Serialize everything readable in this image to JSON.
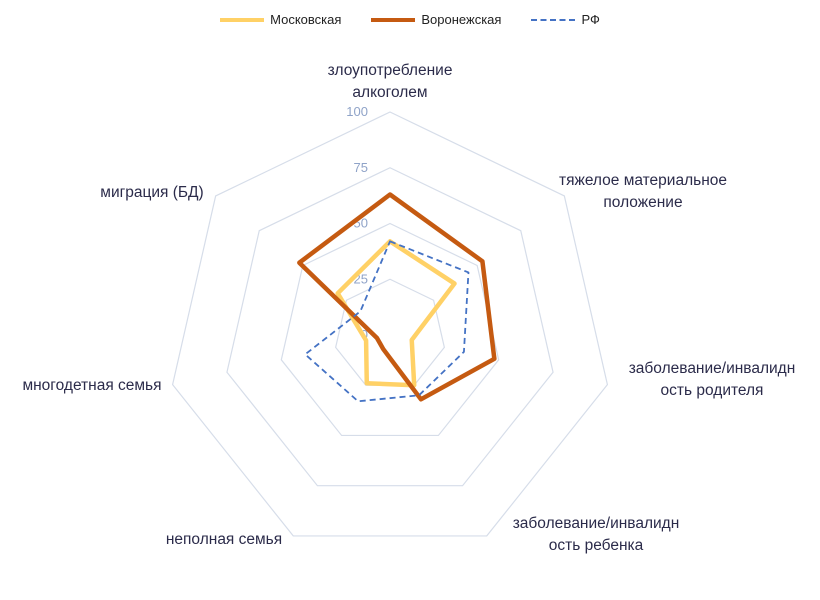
{
  "chart_data": {
    "type": "radar",
    "title": "",
    "axes": [
      "злоупотребление алкоголем",
      "тяжелое материальное положение",
      "заболевание/инвалидность родителя",
      "заболевание/инвалидность ребенка",
      "неполная семья",
      "многодетная семья",
      "миграция (БД)"
    ],
    "axis_label_lines": [
      [
        "злоупотребление",
        "алкоголем"
      ],
      [
        "тяжелое материальное",
        "положение"
      ],
      [
        "заболевание/инвалидн",
        "ость родителя"
      ],
      [
        "заболевание/инвалидн",
        "ость ребенка"
      ],
      [
        "неполная семья"
      ],
      [
        "многодетная семья"
      ],
      [
        "миграция (БД)"
      ]
    ],
    "rlim": [
      0,
      100
    ],
    "ticks": [
      0,
      25,
      50,
      75,
      100
    ],
    "tick_labels": [
      "0",
      "25",
      "50",
      "75",
      "100"
    ],
    "grid": true,
    "legend_position": "top",
    "series": [
      {
        "name": "Московская",
        "values": [
          42,
          37,
          10,
          25,
          24,
          11,
          30
        ],
        "color": "#FFD166",
        "style": "solid"
      },
      {
        "name": "Воронежская",
        "values": [
          63,
          53,
          48,
          32,
          7,
          6,
          52
        ],
        "color": "#C55A11",
        "style": "solid"
      },
      {
        "name": "РФ",
        "values": [
          42,
          45,
          34,
          30,
          33,
          39,
          17
        ],
        "color": "#4472C4",
        "style": "dashed"
      }
    ]
  }
}
